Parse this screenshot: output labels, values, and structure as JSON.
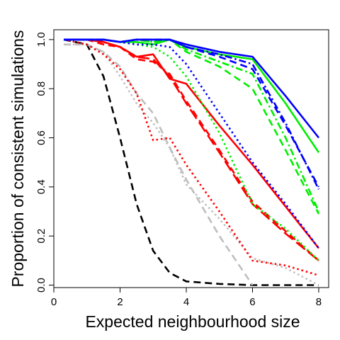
{
  "chart_data": {
    "type": "line",
    "title": "",
    "xlabel": "Expected neighbourhood size",
    "ylabel": "Proportion of consistent simulations",
    "xlim": [
      0,
      8.3
    ],
    "ylim": [
      -0.01,
      1.04
    ],
    "xticks": [
      0,
      2,
      4,
      6,
      8
    ],
    "xtick_labels": [
      "0",
      "2",
      "4",
      "6",
      "8"
    ],
    "yticks": [
      0.0,
      0.2,
      0.4,
      0.6,
      0.8,
      1.0
    ],
    "ytick_labels": [
      "0.0",
      "0.2",
      "0.4",
      "0.6",
      "0.8",
      "1.0"
    ],
    "grid": false,
    "legend": "none",
    "series": [
      {
        "color": "#000000",
        "dash": "dashed",
        "x": [
          0.3,
          1.0,
          1.5,
          2.0,
          2.5,
          3.0,
          3.5,
          4.0,
          5.0,
          6.0,
          7.0,
          8.0
        ],
        "y": [
          1.0,
          0.98,
          0.85,
          0.6,
          0.33,
          0.14,
          0.05,
          0.015,
          0.005,
          0.0,
          0.0,
          0.0
        ]
      },
      {
        "color": "#bebebe",
        "dash": "dashed",
        "x": [
          0.3,
          1.0,
          1.5,
          2.0,
          2.5,
          3.0,
          3.5,
          4.0,
          5.0,
          6.0
        ],
        "y": [
          0.98,
          0.98,
          0.95,
          0.89,
          0.78,
          0.7,
          0.56,
          0.43,
          0.2,
          0.0
        ]
      },
      {
        "color": "#bebebe",
        "dash": "dotted",
        "x": [
          0.3,
          1.0,
          1.5,
          2.0,
          2.5,
          3.0,
          3.5,
          4.0,
          5.0,
          6.0,
          7.0,
          8.0
        ],
        "y": [
          0.98,
          0.98,
          0.95,
          0.85,
          0.74,
          0.66,
          0.56,
          0.41,
          0.27,
          0.11,
          0.07,
          0.0
        ]
      },
      {
        "color": "#ff0000",
        "dash": "dotted",
        "x": [
          0.3,
          1.0,
          1.5,
          2.0,
          2.5,
          3.0,
          3.5,
          4.0,
          5.0,
          6.0,
          7.0,
          8.0
        ],
        "y": [
          1.0,
          0.98,
          0.94,
          0.88,
          0.78,
          0.59,
          0.6,
          0.49,
          0.3,
          0.1,
          0.08,
          0.04
        ]
      },
      {
        "color": "#ff0000",
        "dash": "dashed",
        "x": [
          0.3,
          1.0,
          1.5,
          2.0,
          2.5,
          3.0,
          3.5,
          4.0,
          5.0,
          6.0,
          7.0,
          8.0
        ],
        "y": [
          1.0,
          1.0,
          0.98,
          0.97,
          0.92,
          0.91,
          0.86,
          0.75,
          0.55,
          0.34,
          0.22,
          0.1
        ]
      },
      {
        "color": "#ff0000",
        "dash": "longdash",
        "x": [
          0.3,
          1.0,
          1.5,
          2.0,
          2.5,
          3.0,
          3.5,
          4.0,
          5.0,
          6.0,
          7.0,
          8.0
        ],
        "y": [
          1.0,
          1.0,
          0.99,
          0.97,
          0.93,
          0.92,
          0.85,
          0.74,
          0.54,
          0.33,
          0.21,
          0.1
        ]
      },
      {
        "color": "#ff0000",
        "dash": "solid",
        "x": [
          0.3,
          1.0,
          1.5,
          2.0,
          2.5,
          3.0,
          3.5,
          4.0,
          5.0,
          6.0,
          7.0,
          8.0
        ],
        "y": [
          1.0,
          1.0,
          0.99,
          0.97,
          0.93,
          0.94,
          0.84,
          0.82,
          0.65,
          0.49,
          0.32,
          0.15
        ]
      },
      {
        "color": "#00ee00",
        "dash": "dotted",
        "x": [
          0.3,
          1.0,
          1.5,
          2.0,
          2.5,
          3.0,
          3.5,
          4.0,
          5.0,
          6.0,
          7.0,
          8.0
        ],
        "y": [
          1.0,
          1.0,
          1.0,
          0.99,
          0.98,
          0.97,
          0.93,
          0.85,
          0.62,
          0.33,
          0.23,
          0.1
        ]
      },
      {
        "color": "#00ee00",
        "dash": "dashed",
        "x": [
          0.3,
          1.0,
          1.5,
          2.0,
          2.5,
          3.0,
          3.5,
          4.0,
          5.0,
          6.0,
          7.0,
          8.0
        ],
        "y": [
          1.0,
          1.0,
          1.0,
          0.99,
          1.0,
          0.99,
          1.0,
          0.95,
          0.89,
          0.8,
          0.55,
          0.29
        ]
      },
      {
        "color": "#00ee00",
        "dash": "dotdash",
        "x": [
          0.3,
          1.0,
          1.5,
          2.0,
          2.5,
          3.0,
          3.5,
          4.0,
          5.0,
          6.0,
          7.0,
          8.0
        ],
        "y": [
          1.0,
          1.0,
          1.0,
          0.99,
          1.0,
          0.99,
          1.0,
          0.96,
          0.91,
          0.86,
          0.6,
          0.3
        ]
      },
      {
        "color": "#00ee00",
        "dash": "solid",
        "x": [
          0.3,
          1.0,
          1.5,
          2.0,
          2.5,
          3.0,
          3.5,
          4.0,
          5.0,
          6.0,
          7.0,
          8.0
        ],
        "y": [
          1.0,
          1.0,
          1.0,
          0.99,
          0.99,
          0.98,
          1.0,
          0.97,
          0.94,
          0.92,
          0.74,
          0.54
        ]
      },
      {
        "color": "#0000ff",
        "dash": "dotted",
        "x": [
          0.3,
          1.0,
          1.5,
          2.0,
          2.5,
          3.0,
          3.5,
          4.0,
          5.0,
          6.0,
          7.0,
          8.0
        ],
        "y": [
          1.0,
          1.0,
          1.0,
          0.99,
          0.98,
          0.98,
          0.97,
          0.9,
          0.7,
          0.5,
          0.33,
          0.15
        ]
      },
      {
        "color": "#0000ff",
        "dash": "dashed",
        "x": [
          0.3,
          1.0,
          1.5,
          2.0,
          2.5,
          3.0,
          3.5,
          4.0,
          5.0,
          6.0,
          7.0,
          8.0
        ],
        "y": [
          1.0,
          1.0,
          1.0,
          0.99,
          1.0,
          1.0,
          1.0,
          0.97,
          0.93,
          0.88,
          0.65,
          0.4
        ]
      },
      {
        "color": "#0000ff",
        "dash": "dotdash",
        "x": [
          0.3,
          1.0,
          1.5,
          2.0,
          2.5,
          3.0,
          3.5,
          4.0,
          5.0,
          6.0,
          7.0,
          8.0
        ],
        "y": [
          1.0,
          1.0,
          1.0,
          0.99,
          1.0,
          1.0,
          1.0,
          0.97,
          0.94,
          0.9,
          0.66,
          0.39
        ]
      },
      {
        "color": "#0000ff",
        "dash": "solid",
        "x": [
          0.3,
          1.0,
          1.5,
          2.0,
          2.5,
          3.0,
          3.5,
          4.0,
          5.0,
          6.0,
          7.0,
          8.0
        ],
        "y": [
          1.0,
          1.0,
          1.0,
          0.99,
          1.0,
          1.0,
          1.0,
          0.98,
          0.95,
          0.93,
          0.77,
          0.6
        ]
      }
    ]
  }
}
